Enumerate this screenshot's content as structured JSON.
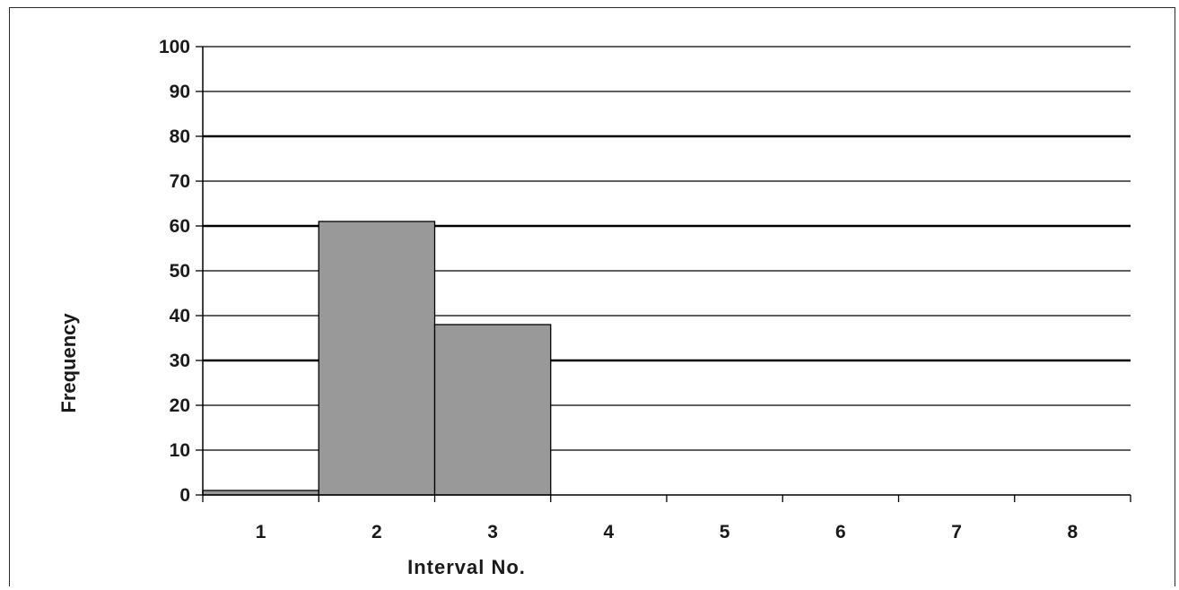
{
  "chart_data": {
    "type": "bar",
    "title": "",
    "xlabel": "Interval No.",
    "ylabel": "Frequency",
    "categories": [
      "1",
      "2",
      "3",
      "4",
      "5",
      "6",
      "7",
      "8"
    ],
    "values": [
      1,
      61,
      38,
      0,
      0,
      0,
      0,
      0
    ],
    "ylim": [
      0,
      100
    ],
    "yticks": [
      0,
      10,
      20,
      30,
      40,
      50,
      60,
      70,
      80,
      90,
      100
    ],
    "grid": true,
    "legend": "none",
    "bar_color": "#999999",
    "bar_edge_color": "#000000",
    "bar_gap": 0
  }
}
